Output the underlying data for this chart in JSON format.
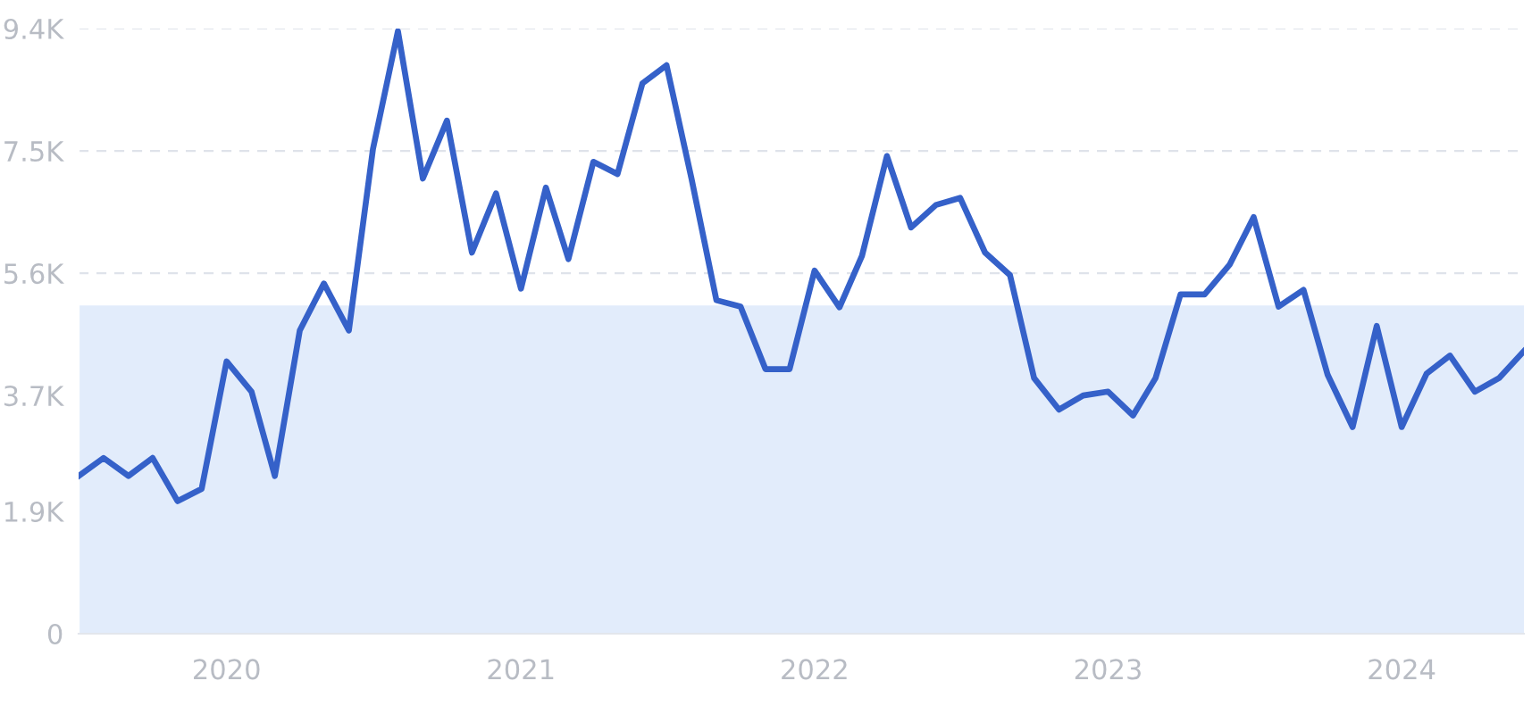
{
  "chart_data": {
    "type": "line",
    "x": [
      "2019-07",
      "2019-08",
      "2019-09",
      "2019-10",
      "2019-11",
      "2019-12",
      "2020-01",
      "2020-02",
      "2020-03",
      "2020-04",
      "2020-05",
      "2020-06",
      "2020-07",
      "2020-08",
      "2020-09",
      "2020-10",
      "2020-11",
      "2020-12",
      "2021-01",
      "2021-02",
      "2021-03",
      "2021-04",
      "2021-05",
      "2021-06",
      "2021-07",
      "2021-08",
      "2021-09",
      "2021-10",
      "2021-11",
      "2021-12",
      "2022-01",
      "2022-02",
      "2022-03",
      "2022-04",
      "2022-05",
      "2022-06",
      "2022-07",
      "2022-08",
      "2022-09",
      "2022-10",
      "2022-11",
      "2022-12",
      "2023-01",
      "2023-02",
      "2023-03",
      "2023-04",
      "2023-05",
      "2023-06",
      "2023-07",
      "2023-08",
      "2023-09",
      "2023-10",
      "2023-11",
      "2023-12",
      "2024-01",
      "2024-02",
      "2024-03",
      "2024-04",
      "2024-05",
      "2024-06"
    ],
    "series": [
      {
        "color": "#3561c9",
        "values": [
          2450,
          2730,
          2450,
          2730,
          2060,
          2250,
          4230,
          3760,
          2450,
          4710,
          5440,
          4710,
          7530,
          9360,
          7070,
          7970,
          5920,
          6840,
          5360,
          6930,
          5820,
          7330,
          7140,
          8550,
          8830,
          7070,
          5180,
          5080,
          4110,
          4110,
          5640,
          5070,
          5870,
          7420,
          6310,
          6660,
          6770,
          5920,
          5570,
          3970,
          3480,
          3700,
          3760,
          3390,
          3970,
          5270,
          5270,
          5730,
          6470,
          5080,
          5340,
          4020,
          3210,
          4780,
          3210,
          4040,
          4320,
          3760,
          3970,
          4390
        ]
      }
    ],
    "xlim": [
      "2019-07",
      "2024-06"
    ],
    "xticks": [
      {
        "value": "2020-01",
        "label": "2020"
      },
      {
        "value": "2021-01",
        "label": "2021"
      },
      {
        "value": "2022-01",
        "label": "2022"
      },
      {
        "value": "2023-01",
        "label": "2023"
      },
      {
        "value": "2024-01",
        "label": "2024"
      }
    ],
    "ylim": [
      0,
      9400
    ],
    "yticks": [
      0,
      {
        "value": 1900,
        "label": "1.9K"
      },
      {
        "value": 3700,
        "label": "3.7K"
      },
      {
        "value": 5600,
        "label": "5.6K"
      },
      {
        "value": 7500,
        "label": "7.5K"
      },
      {
        "value": 9400,
        "label": "9.4K"
      }
    ],
    "grid": "y",
    "line_style": "solid",
    "bands": [
      {
        "axis": "y",
        "from": 0,
        "to": 5100,
        "color": "#e2ecfb"
      }
    ]
  }
}
